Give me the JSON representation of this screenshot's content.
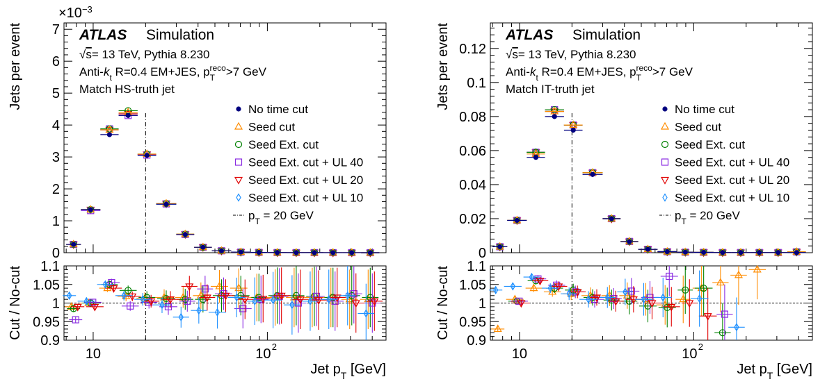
{
  "chart_data": [
    {
      "type": "scatter",
      "id": "hs",
      "xlabel": "Jet p_T [GeV]",
      "xlim": [
        6.8,
        480
      ],
      "xscale": "log",
      "top": {
        "ylabel": "Jets per event",
        "yscale_label": "×10−3",
        "ylim": [
          0,
          7.2
        ],
        "yticks": [
          0,
          1,
          2,
          3,
          4,
          5,
          6,
          7
        ]
      },
      "bottom": {
        "ylabel": "Cut / No-cut",
        "ylim": [
          0.9,
          1.1
        ],
        "yticks": [
          0.9,
          0.95,
          1,
          1.05,
          1.1
        ],
        "ytick_labels": [
          "0.9",
          "0.95",
          "1",
          "1.05",
          "1.1"
        ]
      },
      "xticks": [
        {
          "value": 10,
          "label": "10"
        },
        {
          "value": 100,
          "label": "10^2"
        }
      ],
      "annotation": {
        "atlas": "ATLAS",
        "sim": "Simulation",
        "energy": "√s= 13 TeV, Pythia 8.230",
        "algo": "Anti-kt R=0.4 EM+JES, pTreco>7 GeV",
        "match": "Match HS-truth jet"
      },
      "vline": 20,
      "bins": [
        [
          7,
          8.5
        ],
        [
          8.5,
          11
        ],
        [
          11,
          14
        ],
        [
          14,
          18
        ],
        [
          18,
          23
        ],
        [
          23,
          30
        ],
        [
          30,
          38
        ],
        [
          38,
          48
        ],
        [
          48,
          62
        ],
        [
          62,
          80
        ],
        [
          80,
          100
        ],
        [
          100,
          130
        ],
        [
          130,
          165
        ],
        [
          165,
          210
        ],
        [
          210,
          270
        ],
        [
          270,
          345
        ],
        [
          345,
          440
        ]
      ],
      "series": [
        {
          "name": "No time cut",
          "marker": "dot",
          "color": "#000080",
          "values": [
            0.26,
            1.35,
            3.7,
            4.3,
            3.05,
            1.52,
            0.57,
            0.17,
            0.06,
            0.02,
            0.01,
            0.005,
            0.003,
            0.002,
            0.001,
            0.001,
            0.0005
          ],
          "ratio": []
        },
        {
          "name": "Seed cut",
          "marker": "triangle-up",
          "color": "#ff8c00",
          "values": [
            0.26,
            1.35,
            3.85,
            4.4,
            3.09,
            1.54,
            0.58,
            0.17,
            0.06,
            0.02,
            0.01,
            0.005,
            0.003,
            0.002,
            0.001,
            0.001,
            0.0005
          ],
          "ratio": [
            0.99,
            1.0,
            1.04,
            1.018,
            1.012,
            1.015,
            1.015,
            1.02,
            1.045,
            1.04,
            1.015,
            1.015,
            1.015,
            1.015,
            1.015,
            1.01,
            1.01
          ]
        },
        {
          "name": "Seed Ext. cut",
          "marker": "circle",
          "color": "#008000",
          "values": [
            0.26,
            1.35,
            3.88,
            4.45,
            3.09,
            1.54,
            0.58,
            0.17,
            0.06,
            0.02,
            0.01,
            0.005,
            0.003,
            0.002,
            0.001,
            0.001,
            0.0005
          ],
          "ratio": [
            0.985,
            1.0,
            1.05,
            1.034,
            1.015,
            1.012,
            1.01,
            1.01,
            1.02,
            1.02,
            1.015,
            1.02,
            1.02,
            1.018,
            1.015,
            1.02,
            1.015
          ]
        },
        {
          "name": "Seed Ext. cut + UL 40",
          "marker": "square",
          "color": "#8a2be2",
          "values": [
            0.26,
            1.32,
            3.88,
            4.3,
            3.06,
            1.53,
            0.57,
            0.17,
            0.06,
            0.02,
            0.01,
            0.005,
            0.003,
            0.002,
            0.001,
            0.001,
            0.0005
          ],
          "ratio": [
            0.955,
            1.002,
            1.055,
            0.992,
            1.002,
            0.99,
            1.005,
            1.038,
            1.025,
            0.985,
            1.01,
            1.018,
            1.0,
            1.018,
            1.005,
            1.025,
            1.0
          ]
        },
        {
          "name": "Seed Ext. cut + UL 20",
          "marker": "triangle-down",
          "color": "#e00000",
          "values": [
            0.26,
            1.35,
            3.85,
            4.35,
            3.08,
            1.54,
            0.58,
            0.17,
            0.06,
            0.02,
            0.01,
            0.005,
            0.003,
            0.002,
            0.001,
            0.001,
            0.0005
          ],
          "ratio": [
            0.99,
            0.99,
            1.04,
            1.018,
            1.005,
            1.01,
            1.045,
            1.015,
            1.02,
            1.01,
            1.012,
            1.02,
            1.01,
            1.008,
            1.015,
            1.0,
            1.005
          ]
        },
        {
          "name": "Seed Ext. cut + UL 10",
          "marker": "diamond",
          "color": "#1e90ff",
          "values": [
            0.26,
            1.35,
            3.85,
            4.35,
            3.08,
            1.52,
            0.57,
            0.17,
            0.06,
            0.02,
            0.01,
            0.005,
            0.003,
            0.002,
            0.001,
            0.001,
            0.0005
          ],
          "ratio": [
            1.02,
            1.005,
            1.05,
            1.02,
            1.01,
            0.995,
            0.962,
            0.98,
            0.975,
            1.015,
            1.005,
            1.008,
            0.995,
            1.005,
            1.01,
            1.02,
            0.972
          ]
        }
      ],
      "vline_label": "pT = 20 GeV"
    },
    {
      "type": "scatter",
      "id": "it",
      "xlabel": "Jet p_T [GeV]",
      "xlim": [
        6.8,
        480
      ],
      "xscale": "log",
      "top": {
        "ylabel": "Jets per event",
        "yscale_label": "",
        "ylim": [
          0,
          0.135
        ],
        "yticks": [
          0,
          0.02,
          0.04,
          0.06,
          0.08,
          0.1,
          0.12
        ],
        "ytick_labels": [
          "0",
          "0.02",
          "0.04",
          "0.06",
          "0.08",
          "0.1",
          "0.12"
        ]
      },
      "bottom": {
        "ylabel": "Cut / No-cut",
        "ylim": [
          0.9,
          1.1
        ],
        "yticks": [
          0.9,
          0.95,
          1,
          1.05,
          1.1
        ],
        "ytick_labels": [
          "0.9",
          "0.95",
          "1",
          "1.05",
          "1.1"
        ]
      },
      "xticks": [
        {
          "value": 10,
          "label": "10"
        },
        {
          "value": 100,
          "label": "10^2"
        }
      ],
      "annotation": {
        "atlas": "ATLAS",
        "sim": "Simulation",
        "energy": "√s= 13 TeV, Pythia 8.230",
        "algo": "Anti-kt R=0.4 EM+JES, pTreco>7 GeV",
        "match": "Match IT-truth jet"
      },
      "vline": 20,
      "bins": [
        [
          7,
          8.5
        ],
        [
          8.5,
          11
        ],
        [
          11,
          14
        ],
        [
          14,
          18
        ],
        [
          18,
          23
        ],
        [
          23,
          30
        ],
        [
          30,
          38
        ],
        [
          38,
          48
        ],
        [
          48,
          62
        ],
        [
          62,
          80
        ],
        [
          80,
          100
        ],
        [
          100,
          130
        ],
        [
          130,
          165
        ],
        [
          165,
          210
        ],
        [
          210,
          270
        ],
        [
          270,
          345
        ],
        [
          345,
          440
        ]
      ],
      "series": [
        {
          "name": "No time cut",
          "marker": "dot",
          "color": "#000080",
          "values": [
            0.0035,
            0.019,
            0.056,
            0.08,
            0.072,
            0.046,
            0.02,
            0.0065,
            0.002,
            0.0006,
            0.0003,
            0.0002,
            0.0001,
            0.0001,
            0.0001,
            0.0001,
            0.0001
          ],
          "ratio": []
        },
        {
          "name": "Seed cut",
          "marker": "triangle-up",
          "color": "#ff8c00",
          "values": [
            0.0035,
            0.019,
            0.058,
            0.083,
            0.075,
            0.047,
            0.02,
            0.0066,
            0.002,
            0.0006,
            0.0003,
            0.0002,
            0.0001,
            0.0001,
            0.0001,
            0.0001,
            0.0005
          ],
          "ratio": [
            0.93,
            1.01,
            1.04,
            1.03,
            1.025,
            1.02,
            1.02,
            1.02,
            1.01,
            0.995,
            1.01,
            1.04,
            1.055,
            1.075,
            1.09,
            null,
            null
          ]
        },
        {
          "name": "Seed Ext. cut",
          "marker": "circle",
          "color": "#008000",
          "values": [
            0.0035,
            0.019,
            0.059,
            0.084,
            0.075,
            0.047,
            0.02,
            0.0066,
            0.002,
            0.0006,
            0.0003,
            0.0002,
            0.0001,
            0.0001,
            0.0001,
            0.0001,
            0.0005
          ],
          "ratio": [
            null,
            1.005,
            1.06,
            1.04,
            1.035,
            1.015,
            1.008,
            1.005,
            0.992,
            0.988,
            1.035,
            1.04,
            0.92,
            null,
            null,
            null,
            null
          ]
        },
        {
          "name": "Seed Ext. cut + UL 40",
          "marker": "square",
          "color": "#8a2be2",
          "values": [
            0.0035,
            0.019,
            0.059,
            0.084,
            0.075,
            0.047,
            0.02,
            0.0066,
            0.002,
            0.0006,
            0.0003,
            0.0002,
            0.0001,
            0.0001,
            0.0001,
            0.0001,
            0.0005
          ],
          "ratio": [
            null,
            1.005,
            1.065,
            1.048,
            1.03,
            1.01,
            1.012,
            1.032,
            1.015,
            1.072,
            null,
            null,
            0.97,
            null,
            null,
            null,
            null
          ]
        },
        {
          "name": "Seed Ext. cut + UL 20",
          "marker": "triangle-down",
          "color": "#e00000",
          "values": [
            0.0035,
            0.019,
            0.059,
            0.083,
            0.075,
            0.047,
            0.02,
            0.0066,
            0.002,
            0.0006,
            0.0003,
            0.0002,
            0.0001,
            0.0001,
            0.0001,
            0.0001,
            0.0005
          ],
          "ratio": [
            null,
            1.0,
            1.06,
            1.045,
            1.03,
            1.015,
            1.005,
            1.01,
            1.0,
            0.99,
            1.0,
            0.965,
            null,
            null,
            null,
            null,
            null
          ]
        },
        {
          "name": "Seed Ext. cut + UL 10",
          "marker": "diamond",
          "color": "#1e90ff",
          "values": [
            0.0035,
            0.019,
            0.059,
            0.083,
            0.075,
            0.047,
            0.02,
            0.0066,
            0.002,
            0.0006,
            0.0003,
            0.0002,
            0.0001,
            0.0001,
            0.0001,
            0.0001,
            0.0005
          ],
          "ratio": [
            1.035,
            1.045,
            1.07,
            1.04,
            1.025,
            1.01,
            1.015,
            1.03,
            1.01,
            1.015,
            null,
            1.012,
            null,
            0.935,
            null,
            null,
            null
          ]
        }
      ],
      "vline_label": "pT = 20 GeV"
    }
  ]
}
